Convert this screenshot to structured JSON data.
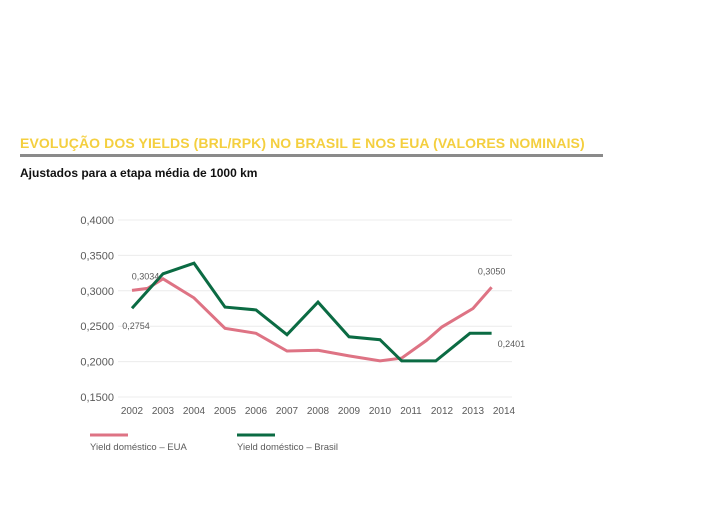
{
  "title": "EVOLUÇÃO DOS YIELDS (BRL/RPK) NO BRASIL E NOS EUA (VALORES NOMINAIS)",
  "subtitle": "Ajustados para a etapa média de 1000 km",
  "colors": {
    "title": "#f4cf3f",
    "usa": "#de7384",
    "brazil": "#0b6b43",
    "rule": "#8a8a8a"
  },
  "chart_data": {
    "type": "line",
    "title": "EVOLUÇÃO DOS YIELDS (BRL/RPK) NO BRASIL E NOS EUA (VALORES NOMINAIS)",
    "subtitle": "Ajustados para a etapa média de 1000 km",
    "xlabel": "",
    "ylabel": "",
    "ylim": [
      0.15,
      0.4
    ],
    "yticks": [
      "0,4000",
      "0,3500",
      "0,3000",
      "0,2500",
      "0,2000",
      "0,1500"
    ],
    "ytick_values": [
      0.4,
      0.35,
      0.3,
      0.25,
      0.2,
      0.15
    ],
    "categories": [
      "2002",
      "2003",
      "2004",
      "2005",
      "2006",
      "2007",
      "2008",
      "2009",
      "2010",
      "2011",
      "2012",
      "2013",
      "2014"
    ],
    "series": [
      {
        "name": "Yield doméstico – EUA",
        "color": "#de7384",
        "x": [
          2002.0,
          2002.5,
          2003.0,
          2004.0,
          2005.0,
          2006.0,
          2007.0,
          2008.0,
          2009.0,
          2010.0,
          2010.7,
          2011.5,
          2012.0,
          2013.0,
          2013.6
        ],
        "values": [
          0.3005,
          0.3034,
          0.317,
          0.29,
          0.247,
          0.24,
          0.215,
          0.216,
          0.208,
          0.201,
          0.205,
          0.23,
          0.249,
          0.275,
          0.305
        ]
      },
      {
        "name": "Yield doméstico – Brasil",
        "color": "#0b6b43",
        "x": [
          2002.0,
          2003.0,
          2004.0,
          2005.0,
          2006.0,
          2007.0,
          2008.0,
          2009.0,
          2010.0,
          2010.7,
          2011.8,
          2012.9,
          2013.6
        ],
        "values": [
          0.2754,
          0.324,
          0.339,
          0.277,
          0.273,
          0.238,
          0.284,
          0.235,
          0.231,
          0.201,
          0.201,
          0.24,
          0.2401
        ]
      }
    ],
    "annotations": [
      {
        "text": "0,3034",
        "series": "Yield doméstico – EUA",
        "x": 2002.5,
        "y": 0.3034
      },
      {
        "text": "0,2754",
        "series": "Yield doméstico – Brasil",
        "x": 2002.0,
        "y": 0.2754
      },
      {
        "text": "0,3050",
        "series": "Yield doméstico – EUA",
        "x": 2013.6,
        "y": 0.305
      },
      {
        "text": "0,2401",
        "series": "Yield doméstico – Brasil",
        "x": 2013.6,
        "y": 0.2401
      }
    ],
    "legend": [
      {
        "label": "Yield doméstico – EUA",
        "color": "#de7384"
      },
      {
        "label": "Yield doméstico – Brasil",
        "color": "#0b6b43"
      }
    ],
    "grid": true,
    "legend_position": "bottom-left"
  }
}
